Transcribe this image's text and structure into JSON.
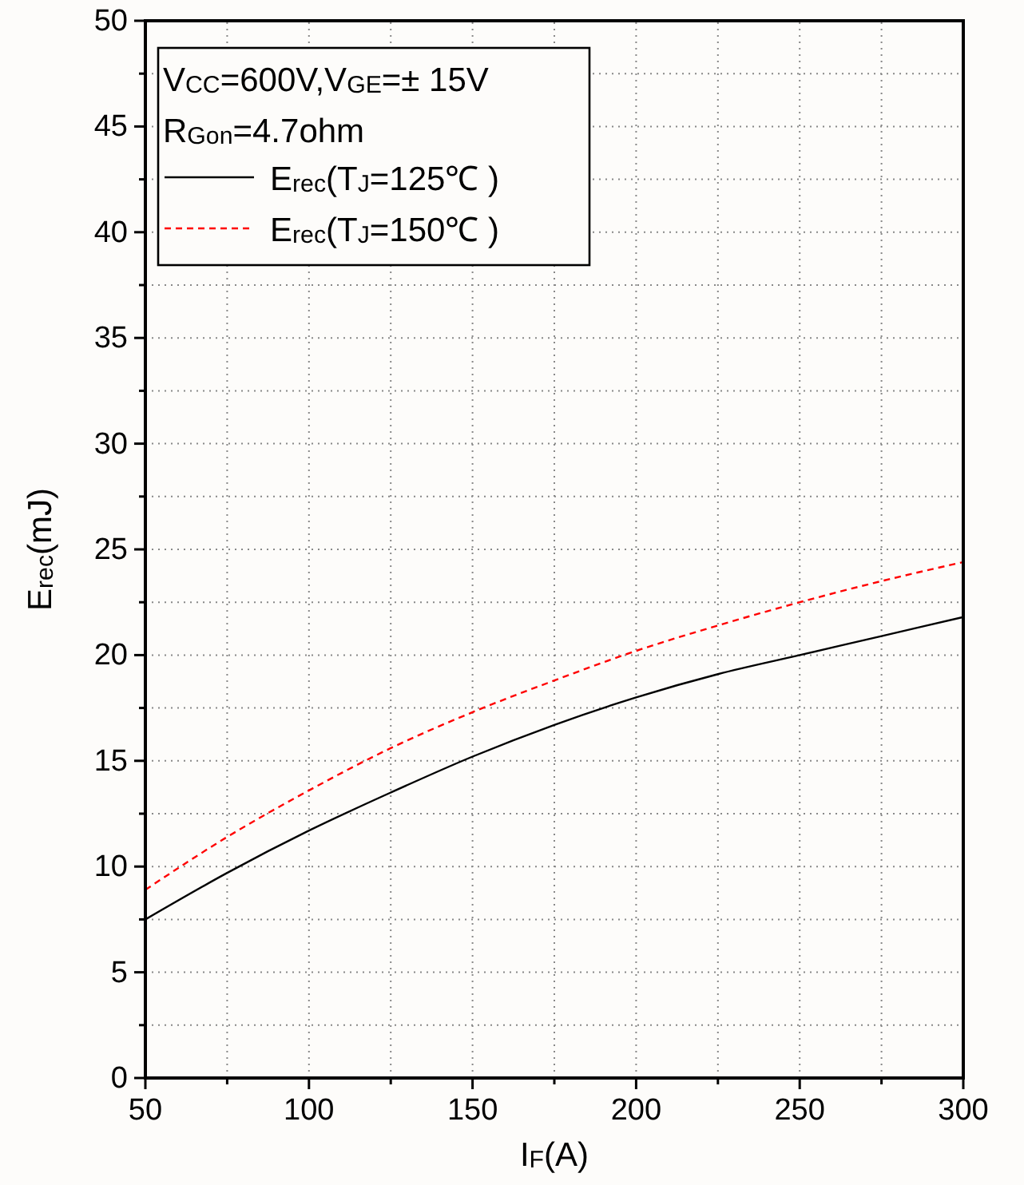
{
  "chart_data": {
    "type": "line",
    "xlabel": "I$_{F}$(A)",
    "ylabel": "E$_{rec}$(mJ)",
    "annotations": [
      "V$_{CC}$=600V,V$_{GE}$=± 15V",
      "R$_{Gon}$=4.7ohm"
    ],
    "x": [
      50,
      75,
      100,
      125,
      150,
      175,
      200,
      225,
      250,
      275,
      300
    ],
    "series": [
      {
        "name": "E$_{rec}$(T$_{J}$=125℃ )",
        "color": "#000000",
        "line_style": "solid",
        "values": [
          7.5,
          9.7,
          11.7,
          13.5,
          15.2,
          16.7,
          18.0,
          19.1,
          20.0,
          20.9,
          21.8
        ]
      },
      {
        "name": "E$_{rec}$(T$_{J}$=150℃ )",
        "color": "#ff0000",
        "line_style": "dashed",
        "values": [
          8.9,
          11.4,
          13.6,
          15.6,
          17.3,
          18.8,
          20.2,
          21.4,
          22.5,
          23.5,
          24.4
        ]
      }
    ],
    "xlim": [
      50,
      300
    ],
    "xticks": [
      50,
      {
        "value": 75,
        "label": null
      },
      100,
      {
        "value": 125,
        "label": null
      },
      150,
      {
        "value": 175,
        "label": null
      },
      200,
      {
        "value": 225,
        "label": null
      },
      250,
      {
        "value": 275,
        "label": null
      },
      300
    ],
    "ylim": [
      0,
      50
    ],
    "yticks": [
      0,
      {
        "value": 2.5,
        "label": null
      },
      5,
      {
        "value": 7.5,
        "label": null
      },
      10,
      {
        "value": 12.5,
        "label": null
      },
      15,
      {
        "value": 17.5,
        "label": null
      },
      20,
      {
        "value": 22.5,
        "label": null
      },
      25,
      {
        "value": 27.5,
        "label": null
      },
      30,
      {
        "value": 32.5,
        "label": null
      },
      35,
      {
        "value": 37.5,
        "label": null
      },
      40,
      {
        "value": 42.5,
        "label": null
      },
      45,
      {
        "value": 47.5,
        "label": null
      },
      50
    ],
    "grid": true,
    "legend": "top left"
  }
}
